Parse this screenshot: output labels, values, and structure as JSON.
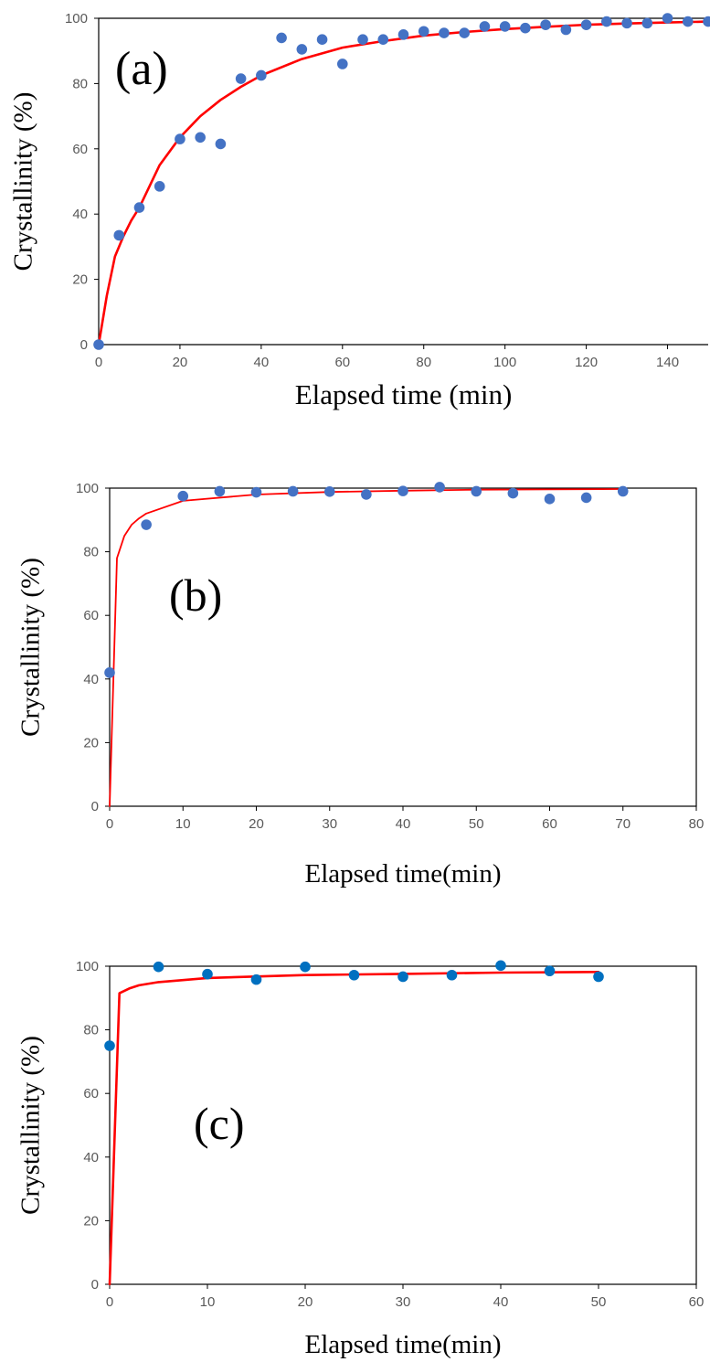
{
  "chart_data": [
    {
      "type": "scatter",
      "panel_label": "(a)",
      "xlabel": "Elapsed time (min)",
      "ylabel": "Crystallinity (%)",
      "xlim": [
        0,
        150
      ],
      "ylim": [
        0,
        100
      ],
      "xticks": [
        0,
        20,
        40,
        60,
        80,
        100,
        120,
        140
      ],
      "yticks": [
        0,
        20,
        40,
        60,
        80,
        100
      ],
      "grid": false,
      "series": [
        {
          "kind": "scatter",
          "color": "#4472C4",
          "x": [
            0,
            5,
            10,
            15,
            20,
            25,
            30,
            35,
            40,
            45,
            50,
            55,
            60,
            65,
            70,
            75,
            80,
            85,
            90,
            95,
            100,
            105,
            110,
            115,
            120,
            125,
            130,
            135,
            140,
            145,
            150
          ],
          "y": [
            0,
            33.5,
            42,
            48.5,
            63,
            63.5,
            61.5,
            81.5,
            82.5,
            94,
            90.5,
            93.5,
            86,
            93.5,
            93.5,
            95,
            96,
            95.5,
            95.5,
            97.5,
            97.5,
            97,
            98,
            96.5,
            98,
            99,
            98.5,
            98.5,
            100,
            99,
            99
          ]
        },
        {
          "kind": "line",
          "color": "#FF0000",
          "x": [
            0,
            2,
            4,
            6,
            8,
            10,
            15,
            20,
            25,
            30,
            35,
            40,
            50,
            60,
            70,
            80,
            90,
            100,
            110,
            120,
            130,
            140,
            150
          ],
          "y": [
            0,
            15,
            27,
            33,
            38,
            42,
            55,
            63.5,
            70,
            75,
            79,
            82.5,
            87.5,
            91,
            93,
            94.7,
            95.8,
            96.7,
            97.4,
            98,
            98.4,
            98.7,
            99
          ]
        }
      ]
    },
    {
      "type": "scatter",
      "panel_label": "(b)",
      "xlabel": "Elapsed time(min)",
      "ylabel": "Crystallinity (%)",
      "xlim": [
        0,
        80
      ],
      "ylim": [
        0,
        100
      ],
      "xticks": [
        0,
        10,
        20,
        30,
        40,
        50,
        60,
        70,
        80
      ],
      "yticks": [
        0,
        20,
        40,
        60,
        80,
        100
      ],
      "grid": false,
      "series": [
        {
          "kind": "scatter",
          "color": "#4472C4",
          "x": [
            0,
            5,
            10,
            15,
            20,
            25,
            30,
            35,
            40,
            45,
            50,
            55,
            60,
            65,
            70
          ],
          "y": [
            42,
            88.5,
            97.5,
            99,
            98.7,
            99,
            98.9,
            98,
            99.1,
            100.3,
            99,
            98.4,
            96.6,
            97,
            99
          ]
        },
        {
          "kind": "line",
          "color": "#FF0000",
          "x": [
            0,
            1,
            2,
            3,
            4,
            5,
            10,
            20,
            30,
            40,
            50,
            60,
            70
          ],
          "y": [
            0,
            78,
            85,
            88.5,
            90.5,
            92,
            96,
            98,
            98.8,
            99.2,
            99.5,
            99.6,
            99.7
          ]
        }
      ]
    },
    {
      "type": "scatter",
      "panel_label": "(c)",
      "xlabel": "Elapsed time(min)",
      "ylabel": "Crystallinity  (%)",
      "xlim": [
        0,
        60
      ],
      "ylim": [
        0,
        100
      ],
      "xticks": [
        0,
        10,
        20,
        30,
        40,
        50,
        60
      ],
      "yticks": [
        0,
        20,
        40,
        60,
        80,
        100
      ],
      "grid": false,
      "series": [
        {
          "kind": "scatter",
          "color": "#0070C0",
          "x": [
            0,
            5,
            10,
            15,
            20,
            25,
            30,
            35,
            40,
            45,
            50
          ],
          "y": [
            75,
            99.8,
            97.5,
            95.8,
            99.8,
            97.2,
            96.7,
            97.2,
            100.2,
            98.5,
            96.7
          ]
        },
        {
          "kind": "line",
          "color": "#FF0000",
          "x": [
            0,
            1,
            2,
            3,
            5,
            10,
            20,
            30,
            40,
            50
          ],
          "y": [
            0,
            91.5,
            93,
            94,
            95,
            96.3,
            97.2,
            97.6,
            98,
            98.2
          ]
        }
      ]
    }
  ]
}
